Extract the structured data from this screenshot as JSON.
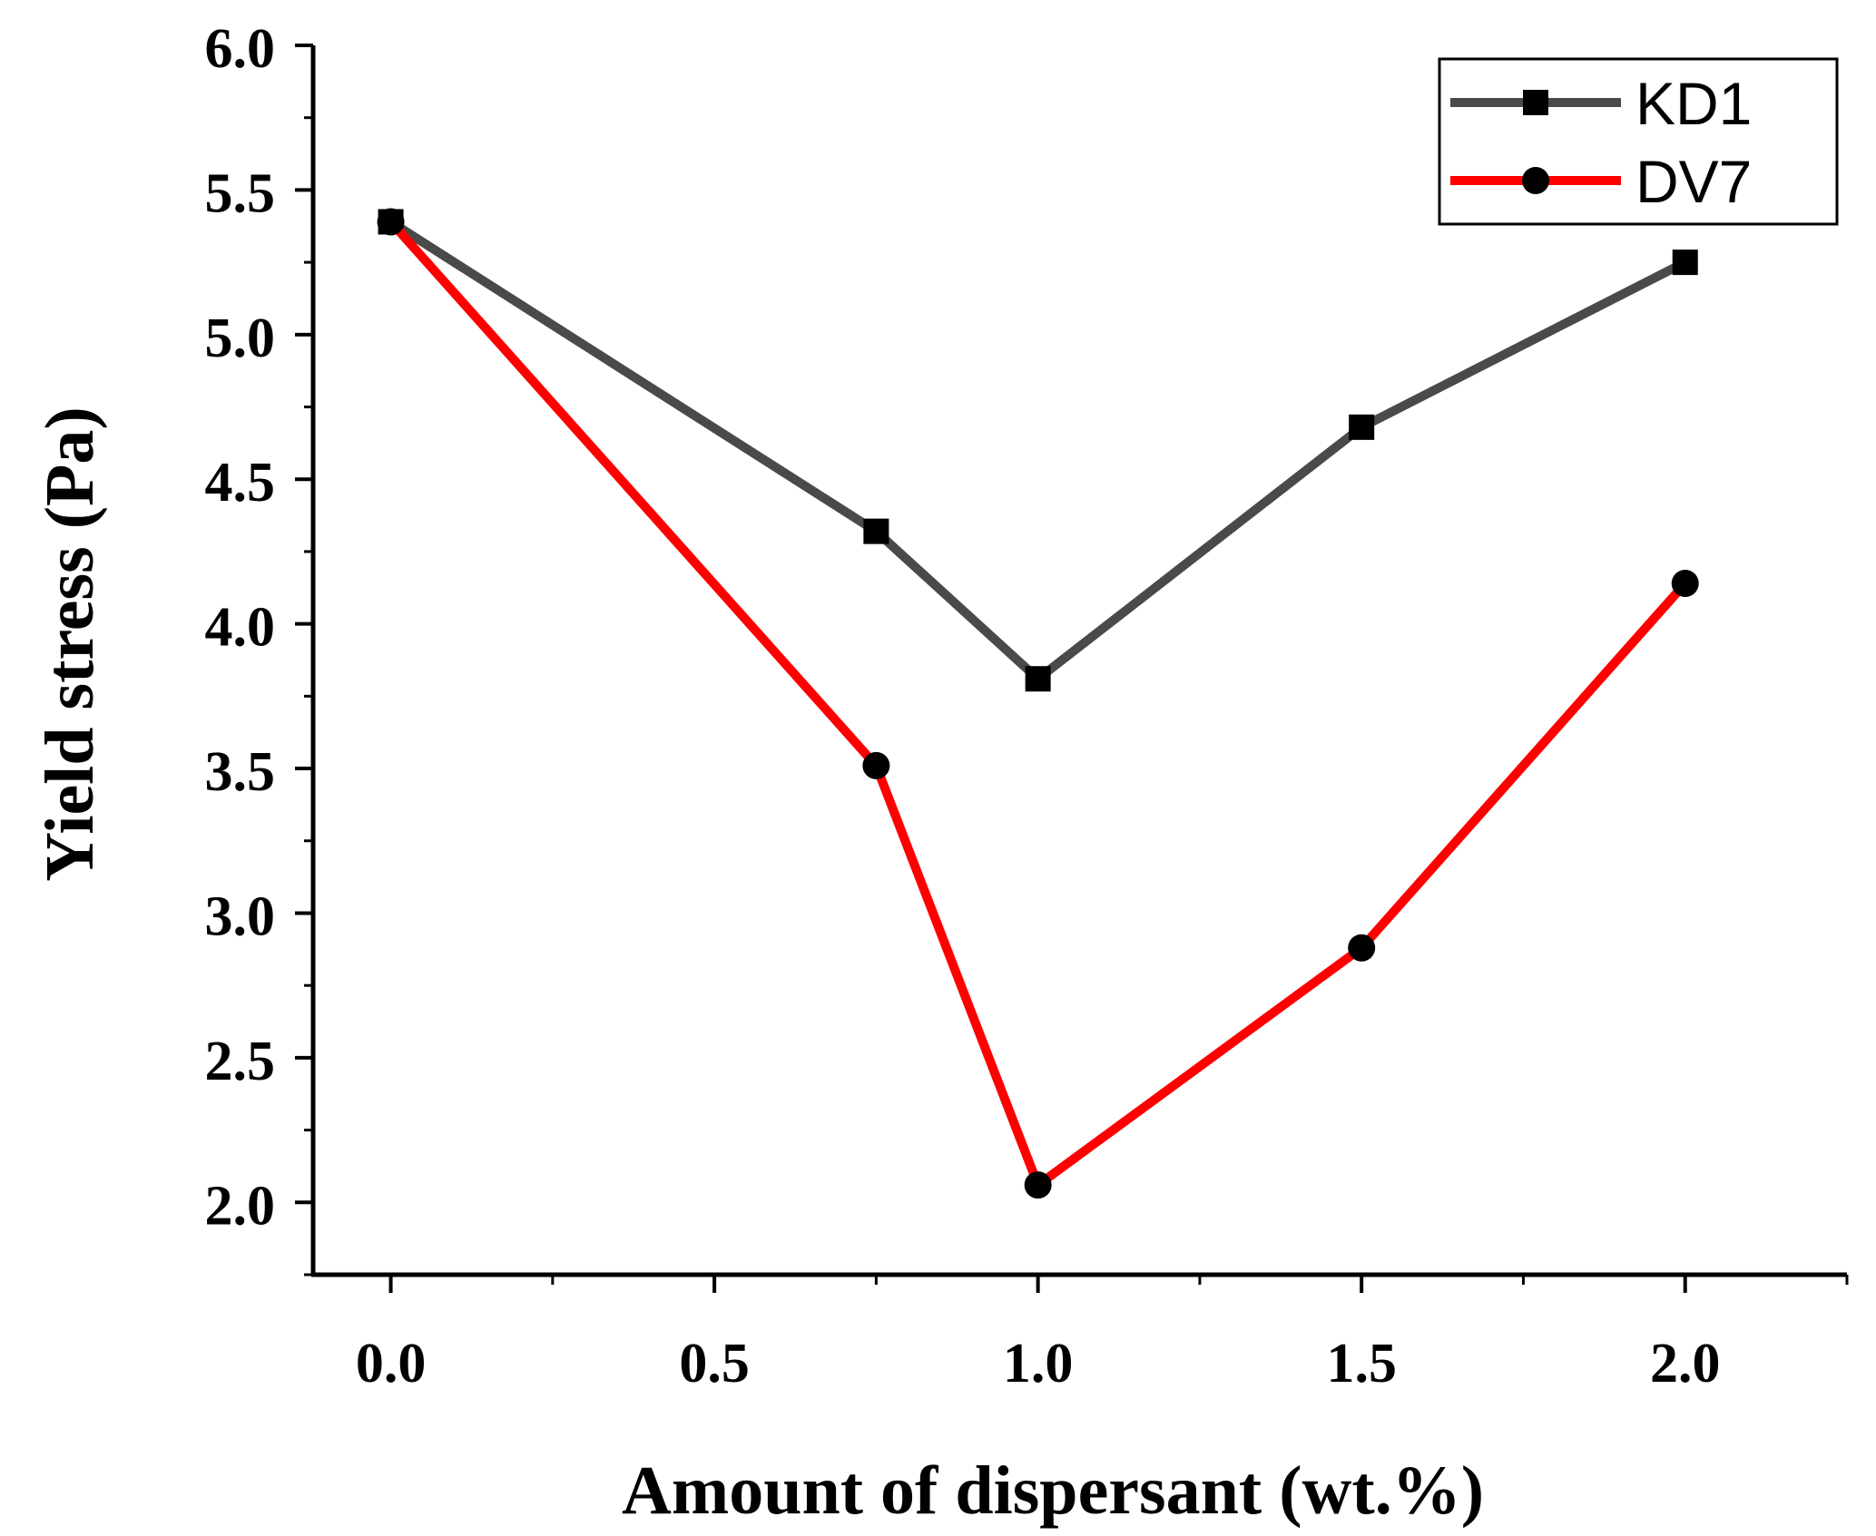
{
  "chart_data": {
    "type": "line",
    "title": "",
    "xlabel": "Amount of dispersant (wt.%)",
    "ylabel": "Yield stress (Pa)",
    "xlim": [
      -0.12,
      2.25
    ],
    "ylim": [
      1.75,
      6.0
    ],
    "xticks": [
      0.0,
      0.5,
      1.0,
      1.5,
      2.0
    ],
    "xtick_labels": [
      "0.0",
      "0.5",
      "1.0",
      "1.5",
      "2.0"
    ],
    "yticks": [
      2.0,
      2.5,
      3.0,
      3.5,
      4.0,
      4.5,
      5.0,
      5.5,
      6.0
    ],
    "ytick_labels": [
      "2.0",
      "2.5",
      "3.0",
      "3.5",
      "4.0",
      "4.5",
      "5.0",
      "5.5",
      "6.0"
    ],
    "grid": false,
    "legend_position": "top-right",
    "series": [
      {
        "name": "KD1",
        "color": "#4a4a4a",
        "marker": "square",
        "x": [
          0.0,
          0.75,
          1.0,
          1.5,
          2.0
        ],
        "y": [
          5.39,
          4.32,
          3.81,
          4.68,
          5.25
        ]
      },
      {
        "name": "DV7",
        "color": "#ff0000",
        "marker": "circle",
        "x": [
          0.0,
          0.75,
          1.0,
          1.5,
          2.0
        ],
        "y": [
          5.39,
          3.51,
          2.06,
          2.88,
          4.14
        ]
      }
    ]
  }
}
